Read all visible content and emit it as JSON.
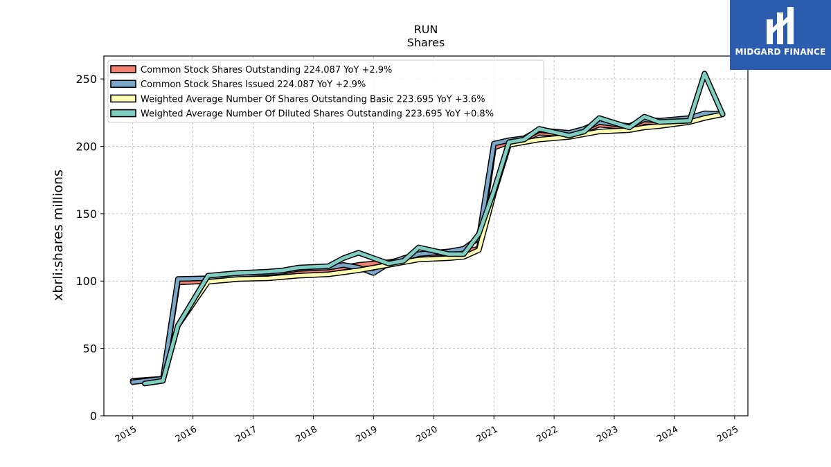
{
  "brand": {
    "name": "MIDGARD FINANCE",
    "color": "#2b5cad"
  },
  "chart_data": {
    "type": "line",
    "title": "RUN",
    "subtitle": "Shares",
    "xlabel": "",
    "ylabel": "xbrli:shares millions",
    "ylim": [
      0,
      267
    ],
    "xlim": [
      2014.52,
      2025.22
    ],
    "x_ticks": [
      2015,
      2016,
      2017,
      2018,
      2019,
      2020,
      2021,
      2022,
      2023,
      2024,
      2025
    ],
    "y_ticks": [
      0,
      50,
      100,
      150,
      200,
      250
    ],
    "grid": true,
    "legend_position": "top-left",
    "series": [
      {
        "name": "Common Stock Shares Outstanding  224.087 YoY +2.9%",
        "color": "#f08070",
        "points": [
          [
            2015.0,
            26
          ],
          [
            2015.5,
            27.5
          ],
          [
            2015.75,
            99
          ],
          [
            2016.25,
            100
          ],
          [
            2016.5,
            100.5
          ],
          [
            2016.75,
            101.5
          ],
          [
            2017.25,
            103
          ],
          [
            2017.5,
            104
          ],
          [
            2017.75,
            107
          ],
          [
            2018.25,
            108
          ],
          [
            2018.5,
            110
          ],
          [
            2018.75,
            112
          ],
          [
            2019.0,
            113
          ],
          [
            2019.25,
            114
          ],
          [
            2019.5,
            116
          ],
          [
            2019.75,
            119
          ],
          [
            2020.25,
            121
          ],
          [
            2020.5,
            122
          ],
          [
            2020.75,
            124
          ],
          [
            2021.0,
            199
          ],
          [
            2021.25,
            203
          ],
          [
            2021.5,
            205
          ],
          [
            2021.75,
            210
          ],
          [
            2022.25,
            209
          ],
          [
            2022.5,
            212
          ],
          [
            2022.75,
            216
          ],
          [
            2023.25,
            214
          ],
          [
            2023.5,
            218
          ],
          [
            2023.75,
            218
          ],
          [
            2024.25,
            220
          ],
          [
            2024.5,
            224
          ],
          [
            2024.8,
            224.087
          ]
        ]
      },
      {
        "name": "Common Stock Shares Issued  224.087 YoY +2.9%",
        "color": "#7ba7c9",
        "points": [
          [
            2015.0,
            25
          ],
          [
            2015.5,
            27.5
          ],
          [
            2015.75,
            101.5
          ],
          [
            2016.25,
            102
          ],
          [
            2016.5,
            104
          ],
          [
            2016.75,
            104.5
          ],
          [
            2017.25,
            106
          ],
          [
            2017.5,
            107
          ],
          [
            2017.75,
            109
          ],
          [
            2018.25,
            110
          ],
          [
            2018.5,
            112
          ],
          [
            2018.75,
            110
          ],
          [
            2019.0,
            106
          ],
          [
            2019.25,
            113
          ],
          [
            2019.5,
            117
          ],
          [
            2019.75,
            120
          ],
          [
            2020.25,
            122
          ],
          [
            2020.5,
            124
          ],
          [
            2020.75,
            132
          ],
          [
            2021.0,
            202
          ],
          [
            2021.25,
            204.5
          ],
          [
            2021.5,
            206
          ],
          [
            2021.75,
            212
          ],
          [
            2022.25,
            210
          ],
          [
            2022.5,
            213
          ],
          [
            2022.75,
            218
          ],
          [
            2023.25,
            215
          ],
          [
            2023.5,
            220
          ],
          [
            2023.75,
            219
          ],
          [
            2024.25,
            221
          ],
          [
            2024.5,
            224.5
          ],
          [
            2024.8,
            224.087
          ]
        ]
      },
      {
        "name": "Weighted Average Number Of Shares Outstanding Basic  223.695 YoY +3.6%",
        "color": "#ffffb3",
        "points": [
          [
            2015.2,
            24
          ],
          [
            2015.5,
            26
          ],
          [
            2015.75,
            67
          ],
          [
            2016.25,
            99.5
          ],
          [
            2016.5,
            100.5
          ],
          [
            2016.75,
            101.5
          ],
          [
            2017.25,
            102
          ],
          [
            2017.5,
            103
          ],
          [
            2017.75,
            104
          ],
          [
            2018.25,
            105
          ],
          [
            2018.5,
            106.5
          ],
          [
            2018.75,
            108
          ],
          [
            2019.0,
            110
          ],
          [
            2019.25,
            112
          ],
          [
            2019.5,
            114
          ],
          [
            2019.75,
            116
          ],
          [
            2020.25,
            117
          ],
          [
            2020.5,
            118
          ],
          [
            2020.75,
            123
          ],
          [
            2021.0,
            165
          ],
          [
            2021.25,
            201
          ],
          [
            2021.5,
            203
          ],
          [
            2021.75,
            205
          ],
          [
            2022.25,
            207
          ],
          [
            2022.5,
            209
          ],
          [
            2022.75,
            211
          ],
          [
            2023.25,
            212
          ],
          [
            2023.5,
            214
          ],
          [
            2023.75,
            215
          ],
          [
            2024.25,
            218
          ],
          [
            2024.5,
            221
          ],
          [
            2024.8,
            223.695
          ]
        ]
      },
      {
        "name": "Weighted Average Number Of Diluted Shares Outstanding  223.695 YoY +0.8%",
        "color": "#80cdc1",
        "points": [
          [
            2015.2,
            24
          ],
          [
            2015.5,
            26
          ],
          [
            2015.75,
            67
          ],
          [
            2016.25,
            104
          ],
          [
            2016.5,
            105
          ],
          [
            2016.75,
            106
          ],
          [
            2017.25,
            107
          ],
          [
            2017.5,
            108
          ],
          [
            2017.75,
            110
          ],
          [
            2018.25,
            111
          ],
          [
            2018.5,
            117
          ],
          [
            2018.75,
            121
          ],
          [
            2019.0,
            117
          ],
          [
            2019.25,
            113
          ],
          [
            2019.5,
            115
          ],
          [
            2019.75,
            125
          ],
          [
            2020.25,
            120
          ],
          [
            2020.5,
            120
          ],
          [
            2020.75,
            135
          ],
          [
            2021.0,
            167
          ],
          [
            2021.25,
            203
          ],
          [
            2021.5,
            205
          ],
          [
            2021.75,
            213
          ],
          [
            2022.25,
            208
          ],
          [
            2022.5,
            211
          ],
          [
            2022.75,
            221
          ],
          [
            2023.25,
            214
          ],
          [
            2023.5,
            222
          ],
          [
            2023.75,
            218
          ],
          [
            2024.25,
            219
          ],
          [
            2024.5,
            254
          ],
          [
            2024.8,
            223.695
          ]
        ]
      }
    ]
  }
}
